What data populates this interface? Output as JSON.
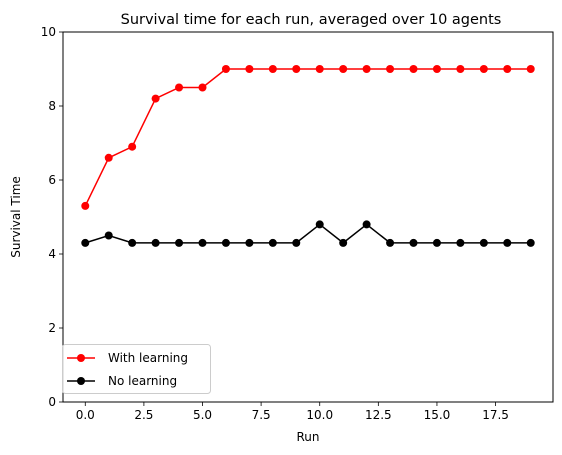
{
  "chart_data": {
    "type": "line",
    "title": "Survival time for each run, averaged over 10 agents",
    "xlabel": "Run",
    "ylabel": "Survival Time",
    "xlim": [
      -0.95,
      19.95
    ],
    "ylim": [
      0,
      10
    ],
    "xticks": [
      0.0,
      2.5,
      5.0,
      7.5,
      10.0,
      12.5,
      15.0,
      17.5
    ],
    "xtick_labels": [
      "0.0",
      "2.5",
      "5.0",
      "7.5",
      "10.0",
      "12.5",
      "15.0",
      "17.5"
    ],
    "yticks": [
      0,
      2,
      4,
      6,
      8,
      10
    ],
    "ytick_labels": [
      "0",
      "2",
      "4",
      "6",
      "8",
      "10"
    ],
    "grid": false,
    "legend_position": "lower-left",
    "x": [
      0,
      1,
      2,
      3,
      4,
      5,
      6,
      7,
      8,
      9,
      10,
      11,
      12,
      13,
      14,
      15,
      16,
      17,
      18,
      19
    ],
    "series": [
      {
        "name": "With learning",
        "color": "#ff0000",
        "marker": "circle",
        "values": [
          5.3,
          6.6,
          6.9,
          8.2,
          8.5,
          8.5,
          9.0,
          9.0,
          9.0,
          9.0,
          9.0,
          9.0,
          9.0,
          9.0,
          9.0,
          9.0,
          9.0,
          9.0,
          9.0,
          9.0
        ]
      },
      {
        "name": "No learning",
        "color": "#000000",
        "marker": "circle",
        "values": [
          4.3,
          4.5,
          4.3,
          4.3,
          4.3,
          4.3,
          4.3,
          4.3,
          4.3,
          4.3,
          4.8,
          4.3,
          4.8,
          4.3,
          4.3,
          4.3,
          4.3,
          4.3,
          4.3,
          4.3
        ]
      }
    ]
  }
}
